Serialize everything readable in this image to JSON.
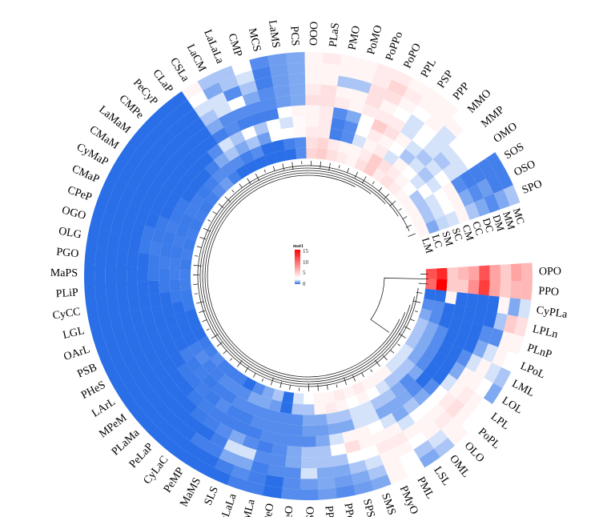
{
  "chart_data": {
    "type": "heatmap",
    "layout": "circular",
    "legend": {
      "title": "mat1",
      "ticks": [
        "15",
        "10",
        "5",
        "0"
      ],
      "range": [
        0,
        15
      ],
      "placement": "center"
    },
    "colors": {
      "low": "#2a6fe8",
      "mid": "#ffffff",
      "high": "#ff0000"
    },
    "tracks": [
      "LM",
      "LC",
      "SM",
      "SC",
      "CM",
      "CC",
      "DC",
      "DM",
      "MM",
      "MC"
    ],
    "sectors": [
      {
        "name": "OPO",
        "values": [
          11,
          13,
          5,
          6,
          7,
          11,
          7,
          5,
          7,
          6
        ]
      },
      {
        "name": "PPO",
        "values": [
          10,
          15,
          5,
          5,
          8,
          12,
          7,
          5,
          6,
          6
        ]
      },
      {
        "name": "CyPLa",
        "values": [
          0,
          0,
          3,
          0,
          0,
          0,
          0,
          3,
          1,
          2
        ]
      },
      {
        "name": "LPLn",
        "values": [
          0.5,
          0.5,
          0,
          0,
          0,
          0,
          0,
          1.5,
          5,
          4
        ]
      },
      {
        "name": "PLnP",
        "values": [
          1,
          0.5,
          0,
          0,
          0,
          0,
          0.5,
          0.5,
          3,
          3
        ]
      },
      {
        "name": "LPoL",
        "values": [
          1.5,
          1,
          0.5,
          0,
          0,
          0,
          1,
          2,
          3,
          2.5
        ]
      },
      {
        "name": "LML",
        "values": [
          1.5,
          1,
          0.5,
          0,
          0,
          0.5,
          2,
          3,
          2,
          1.5
        ]
      },
      {
        "name": "LOL",
        "values": [
          1.5,
          1,
          0.5,
          0,
          0,
          1,
          3,
          3,
          2.5,
          1
        ]
      },
      {
        "name": "LPL",
        "values": [
          2,
          1,
          0.5,
          0,
          0,
          2,
          3,
          3.5,
          3,
          2.5
        ]
      },
      {
        "name": "PoPL",
        "values": [
          2,
          1.5,
          1,
          0,
          0.5,
          2.5,
          3.5,
          4,
          3,
          2.5
        ]
      },
      {
        "name": "OLO",
        "values": [
          2,
          1.5,
          0.5,
          0.5,
          1,
          2.5,
          3,
          3.5,
          3,
          3
        ]
      },
      {
        "name": "OML",
        "values": [
          3,
          1.5,
          1,
          1,
          1.5,
          2.5,
          3,
          3,
          2,
          1.5
        ]
      },
      {
        "name": "LSL",
        "values": [
          3,
          2,
          1.5,
          1,
          1,
          2,
          3,
          2.5,
          1.5,
          1
        ]
      },
      {
        "name": "PML",
        "values": [
          3,
          2.5,
          1.5,
          1,
          2,
          3,
          3.5,
          3,
          2.5,
          2.5
        ]
      },
      {
        "name": "PMyO",
        "values": [
          3.5,
          3,
          2,
          2,
          2.5,
          3,
          3.5,
          3,
          3,
          3
        ]
      },
      {
        "name": "SMS",
        "values": [
          3,
          2.5,
          2,
          2,
          3,
          3,
          2.5,
          2,
          1.5,
          1
        ]
      },
      {
        "name": "SPS",
        "values": [
          3.5,
          3,
          1.5,
          1,
          3,
          4,
          2.5,
          1.5,
          1,
          0.8
        ]
      },
      {
        "name": "PPeO",
        "values": [
          3,
          3.5,
          1.5,
          1,
          2,
          2.5,
          1.5,
          1,
          0.8,
          0.5
        ]
      },
      {
        "name": "PPeP",
        "values": [
          3,
          3,
          1,
          0.8,
          1,
          1.5,
          1.5,
          1,
          1,
          0.8
        ]
      },
      {
        "name": "OSL",
        "values": [
          2.5,
          1.5,
          1,
          0.8,
          0.5,
          1.5,
          1.5,
          2,
          0.8,
          0.5
        ]
      },
      {
        "name": "OPeO",
        "values": [
          2,
          1.5,
          0.5,
          0.5,
          0.5,
          1,
          1,
          0.5,
          0.5,
          0.5
        ]
      },
      {
        "name": "SPeO",
        "values": [
          0,
          0,
          0.5,
          0.5,
          0.5,
          0.5,
          0.5,
          0.5,
          0,
          0
        ]
      },
      {
        "name": "CyMLa",
        "values": [
          1.5,
          0.8,
          0.5,
          0.5,
          0.5,
          0.3,
          0.5,
          0.3,
          0.3,
          0.3
        ]
      },
      {
        "name": "CyLaLa",
        "values": [
          1,
          1,
          0.5,
          0.5,
          0.3,
          0.5,
          2,
          1,
          0.5,
          0.3
        ]
      },
      {
        "name": "SLS",
        "values": [
          0.5,
          1,
          0.5,
          0.3,
          0.3,
          1,
          2,
          1,
          0.3,
          0
        ]
      },
      {
        "name": "MaMS",
        "values": [
          0,
          0.5,
          0.5,
          0.3,
          0.3,
          0.5,
          0.3,
          0.3,
          0,
          0
        ]
      },
      {
        "name": "PeMP",
        "values": [
          0.3,
          0.5,
          0.3,
          0.5,
          0.3,
          0.3,
          0,
          0.3,
          0,
          0
        ]
      },
      {
        "name": "CyLaC",
        "values": [
          0.3,
          0.5,
          0.3,
          0.2,
          0.3,
          0.2,
          0,
          0,
          0,
          0
        ]
      },
      {
        "name": "PeLaP",
        "values": [
          0.3,
          0.3,
          0.2,
          0.3,
          0.2,
          0,
          0,
          0,
          0,
          0
        ]
      },
      {
        "name": "PLaMa",
        "values": [
          0.5,
          0.3,
          0.3,
          0.2,
          0,
          0,
          0,
          0,
          0,
          0
        ]
      },
      {
        "name": "MPeM",
        "values": [
          0.3,
          0.5,
          0.2,
          0.2,
          0,
          0,
          0,
          0,
          0,
          0
        ]
      },
      {
        "name": "LArL",
        "values": [
          0.2,
          0.3,
          0.3,
          0,
          0,
          0,
          0,
          0,
          0,
          0
        ]
      },
      {
        "name": "PHeS",
        "values": [
          0,
          0,
          0,
          0,
          0,
          0,
          0,
          0,
          0,
          0
        ]
      },
      {
        "name": "PSB",
        "values": [
          0,
          0,
          0,
          0,
          0,
          0,
          0,
          0,
          0,
          0
        ]
      },
      {
        "name": "OArL",
        "values": [
          0,
          0,
          0,
          0,
          0,
          0,
          0,
          0,
          0,
          0
        ]
      },
      {
        "name": "LGL",
        "values": [
          0.2,
          0,
          0,
          0,
          0,
          0,
          0,
          0,
          0,
          0
        ]
      },
      {
        "name": "CyCC",
        "values": [
          0.2,
          0.2,
          0,
          0,
          0,
          0,
          0,
          0,
          0,
          0
        ]
      },
      {
        "name": "PLiP",
        "values": [
          0.3,
          0.2,
          0.2,
          0,
          0,
          0,
          0,
          0,
          0,
          0
        ]
      },
      {
        "name": "MaPS",
        "values": [
          0.3,
          0.3,
          0.2,
          0.2,
          0,
          0,
          0,
          0,
          0,
          0
        ]
      },
      {
        "name": "PGO",
        "values": [
          0.2,
          0.3,
          0.3,
          0.2,
          0,
          0,
          0,
          0,
          0,
          0
        ]
      },
      {
        "name": "OLG",
        "values": [
          0.3,
          0.2,
          0.2,
          0.3,
          0.2,
          0,
          0,
          0,
          0,
          0
        ]
      },
      {
        "name": "OGO",
        "values": [
          0.2,
          0.3,
          0.2,
          0.2,
          0.2,
          0,
          0,
          0,
          0,
          0
        ]
      },
      {
        "name": "CPeP",
        "values": [
          0.3,
          0.2,
          0.3,
          0.2,
          0,
          0,
          0,
          0,
          0,
          0
        ]
      },
      {
        "name": "CMaP",
        "values": [
          0.2,
          0.2,
          0.2,
          0,
          0,
          0,
          0,
          0,
          0,
          0
        ]
      },
      {
        "name": "CyMaP",
        "values": [
          0.3,
          0.3,
          0.2,
          0,
          0,
          0,
          0,
          0,
          0,
          0
        ]
      },
      {
        "name": "CMaM",
        "values": [
          0.2,
          0.3,
          0,
          0,
          0,
          0,
          0,
          0,
          0,
          0
        ]
      },
      {
        "name": "LaMaM",
        "values": [
          0.3,
          0.2,
          0,
          0,
          0,
          0,
          0,
          0,
          0,
          0
        ]
      },
      {
        "name": "CMPe",
        "values": [
          0.5,
          0.3,
          0,
          0,
          0,
          0,
          0,
          0,
          0,
          0
        ]
      },
      {
        "name": "PeCyP",
        "values": [
          0.8,
          0.5,
          0.3,
          0,
          0,
          0,
          0,
          0,
          0,
          0
        ]
      },
      {
        "name": "CLaP",
        "values": [
          0.3,
          0.5,
          1,
          0.5,
          0,
          0,
          0,
          0,
          0,
          0
        ]
      },
      {
        "name": "CSLa",
        "values": [
          0,
          0.5,
          1.5,
          2,
          0.3,
          1,
          1.5,
          2,
          2.5,
          3
        ]
      },
      {
        "name": "LaCM",
        "values": [
          0,
          0.3,
          1,
          1.5,
          0.5,
          0.5,
          2,
          2,
          1,
          1.5
        ]
      },
      {
        "name": "LaLaLa",
        "values": [
          0,
          0.5,
          1.5,
          2.5,
          0.3,
          0.5,
          2.5,
          0.5,
          1.5,
          1.5
        ]
      },
      {
        "name": "CMP",
        "values": [
          0,
          0,
          0.8,
          1.5,
          0.3,
          0.5,
          1,
          1.5,
          2,
          2.5
        ]
      },
      {
        "name": "MCS",
        "values": [
          0,
          0,
          2.5,
          2.5,
          0.3,
          0.5,
          0.5,
          0.3,
          0.3,
          0.5
        ]
      },
      {
        "name": "LaMS",
        "values": [
          0,
          0.3,
          2.5,
          2,
          2.5,
          0.8,
          0.8,
          0.8,
          0.8,
          0.8
        ]
      },
      {
        "name": "PCS",
        "values": [
          0.5,
          0.5,
          2.8,
          2.8,
          3,
          1,
          1,
          1,
          1,
          1
        ]
      },
      {
        "name": "OOO",
        "values": [
          4.5,
          4,
          3.5,
          3,
          3,
          4,
          3.5,
          3,
          3,
          3
        ]
      },
      {
        "name": "PLaS",
        "values": [
          5,
          4.5,
          3.5,
          3.5,
          3.5,
          4,
          4,
          3,
          3,
          3.5
        ]
      },
      {
        "name": "PMO",
        "values": [
          4,
          3.5,
          0.3,
          0.3,
          0.5,
          3.5,
          3,
          1.5,
          3,
          3
        ]
      },
      {
        "name": "PoMO",
        "values": [
          3.5,
          3,
          0.5,
          0.5,
          1,
          3,
          3,
          1.5,
          3,
          3
        ]
      },
      {
        "name": "PoPPo",
        "values": [
          3,
          3,
          2,
          2.5,
          2.5,
          3.5,
          4,
          4,
          3.5,
          3.5
        ]
      },
      {
        "name": "PoPO",
        "values": [
          4,
          3.5,
          3,
          3.5,
          5,
          3.5,
          3,
          4,
          4.5,
          3.5
        ]
      },
      {
        "name": "PPL",
        "values": [
          5,
          5,
          3.5,
          3,
          4,
          3.5,
          2.5,
          3,
          3.5,
          3
        ]
      },
      {
        "name": "PSP",
        "values": [
          3.5,
          4,
          2,
          2.5,
          3,
          2,
          2,
          2.5,
          3,
          3
        ]
      },
      {
        "name": "PPP",
        "values": [
          4,
          3.5,
          3,
          1.5,
          2,
          2.5,
          2.5,
          3,
          3,
          3
        ]
      },
      {
        "name": "MMO",
        "values": [
          3.5,
          3,
          2.5,
          2,
          1.5,
          2,
          2,
          2,
          3,
          2.5
        ]
      },
      {
        "name": "MMP",
        "values": [
          3,
          2.5,
          2,
          1.5,
          2,
          1.5,
          2,
          2.5,
          2.5,
          2.5
        ]
      },
      {
        "name": "OMO",
        "values": [
          3,
          1.5,
          2.5,
          2,
          2.5,
          2,
          2,
          2.5,
          2.5,
          2.5
        ]
      },
      {
        "name": "SOS",
        "values": [
          3,
          1.5,
          2,
          2.5,
          3,
          0.5,
          0.3,
          0.3,
          0.3,
          0.3
        ]
      },
      {
        "name": "OSO",
        "values": [
          3,
          1.5,
          2,
          2.5,
          3,
          1,
          0.5,
          0.8,
          0.3,
          0.3
        ]
      },
      {
        "name": "SPO",
        "values": [
          3,
          1,
          1.8,
          2,
          3,
          1.5,
          1,
          0.5,
          1,
          1.5
        ]
      }
    ]
  }
}
